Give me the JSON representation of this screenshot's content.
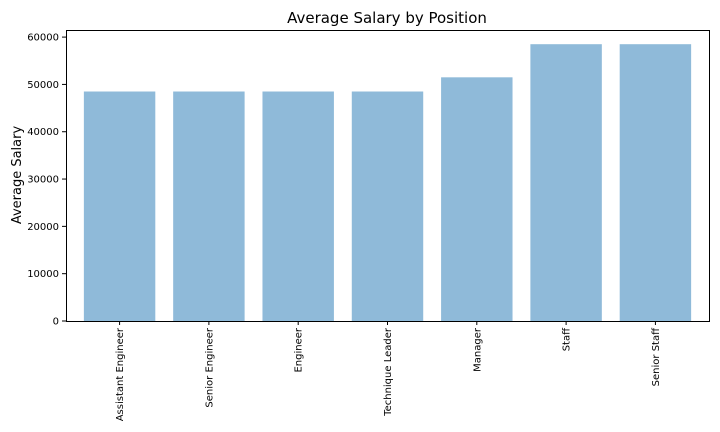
{
  "chart_data": {
    "type": "bar",
    "title": "Average Salary by Position",
    "xlabel": "",
    "ylabel": "Average Salary",
    "categories": [
      "Assistant Engineer",
      "Senior Engineer",
      "Engineer",
      "Technique Leader",
      "Manager",
      "Staff",
      "Senior Staff"
    ],
    "values": [
      48500,
      48500,
      48500,
      48500,
      51500,
      58500,
      58500
    ],
    "ylim": [
      0,
      61500
    ],
    "yticks": [
      0,
      10000,
      20000,
      30000,
      40000,
      50000,
      60000
    ],
    "grid": false,
    "bar_color": "#8fbad9"
  }
}
